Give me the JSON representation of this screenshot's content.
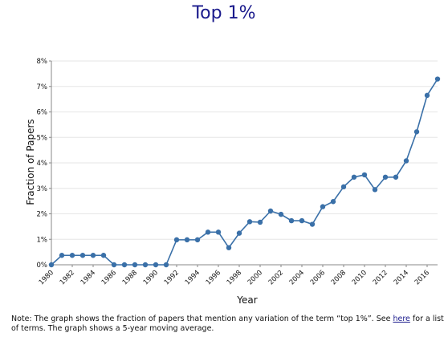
{
  "chart_data": {
    "type": "line",
    "title": "Top 1%",
    "xlabel": "Year",
    "ylabel": "Fraction of Papers",
    "x": [
      1980,
      1981,
      1982,
      1983,
      1984,
      1985,
      1986,
      1987,
      1988,
      1989,
      1990,
      1991,
      1992,
      1993,
      1994,
      1995,
      1996,
      1997,
      1998,
      1999,
      2000,
      2001,
      2002,
      2003,
      2004,
      2005,
      2006,
      2007,
      2008,
      2009,
      2010,
      2011,
      2012,
      2013,
      2014,
      2015,
      2016,
      2017
    ],
    "series": [
      {
        "values": [
          0.0,
          0.37,
          0.37,
          0.37,
          0.37,
          0.37,
          0.0,
          0.0,
          0.0,
          0.0,
          0.0,
          0.0,
          0.98,
          0.98,
          0.98,
          1.28,
          1.28,
          0.67,
          1.24,
          1.69,
          1.67,
          2.11,
          1.98,
          1.73,
          1.73,
          1.59,
          2.28,
          2.48,
          3.06,
          3.44,
          3.53,
          2.95,
          3.44,
          3.44,
          4.08,
          5.22,
          6.65,
          7.29
        ],
        "color": "#3a70a8"
      }
    ],
    "xticks": [
      "1980",
      "1982",
      "1984",
      "1986",
      "1988",
      "1990",
      "1992",
      "1994",
      "1996",
      "1998",
      "2000",
      "2002",
      "2004",
      "2006",
      "2008",
      "2010",
      "2012",
      "2014",
      "2016"
    ],
    "yticks": [
      "0%",
      "1%",
      "2%",
      "3%",
      "4%",
      "5%",
      "6%",
      "7%",
      "8%"
    ],
    "xlim": [
      1980,
      2017
    ],
    "ylim": [
      0,
      8
    ],
    "grid": true,
    "legend": "none"
  },
  "note": {
    "before": "Note: The graph shows the fraction of papers that mention any variation of the term “top 1%”. See ",
    "link": "here",
    "after": " for a list of terms. The graph shows a 5-year moving average."
  }
}
